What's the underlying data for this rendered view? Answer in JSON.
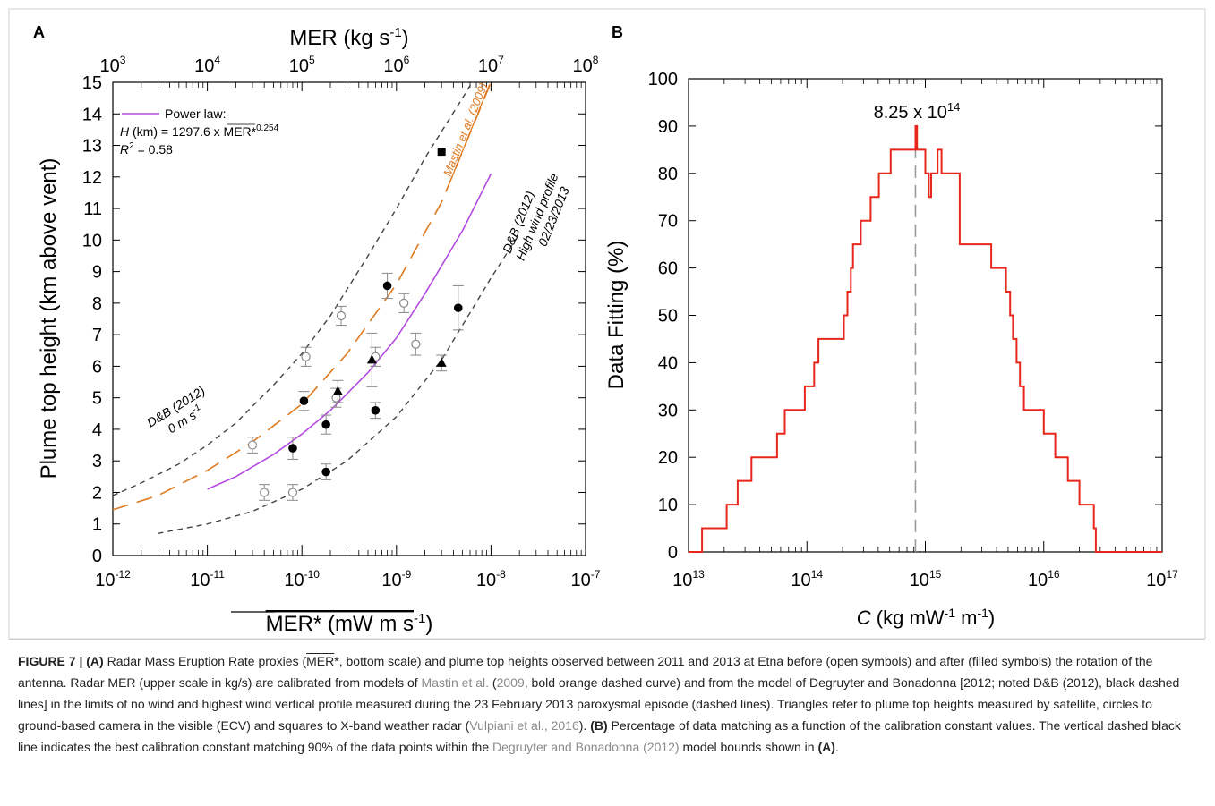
{
  "chart_data": [
    {
      "panel": "A",
      "type": "scatter",
      "top_axis": {
        "label": "MER (kg s",
        "label_sup": "-1",
        "label_close": ")",
        "ticks": [
          "10^3",
          "10^4",
          "10^5",
          "10^6",
          "10^7",
          "10^8"
        ],
        "log": true,
        "range": [
          1000,
          100000000
        ]
      },
      "xaxis": {
        "label": "MER* (mW m s",
        "label_sup": "-1",
        "label_close": ")",
        "log": true,
        "range": [
          1e-12,
          1e-07
        ],
        "ticks": [
          "10^-12",
          "10^-11",
          "10^-10",
          "10^-9",
          "10^-8",
          "10^-7"
        ]
      },
      "yaxis": {
        "label": "Plume top height (km above vent)",
        "range": [
          0,
          15
        ],
        "ticks": [
          0,
          1,
          2,
          3,
          4,
          5,
          6,
          7,
          8,
          9,
          10,
          11,
          12,
          13,
          14,
          15
        ]
      },
      "legend": {
        "name": "Power law:",
        "eq_var": "H",
        "eq_mid": " (km) = 1297.6 x MER*",
        "eq_exp": "0.254",
        "r2_label": "R",
        "r2_value": " = 0.58",
        "color": "#b44be1"
      },
      "curves": [
        {
          "name": "D&B (2012) 0 m s-1",
          "label_line1": "D&B (2012)",
          "label_line2": "0 m s",
          "label_sup": "-1",
          "style": "dashed-black",
          "points": [
            [
              1e-12,
              1.9
            ],
            [
              2e-12,
              2.3
            ],
            [
              5e-12,
              2.9
            ],
            [
              1e-11,
              3.5
            ],
            [
              2e-11,
              4.2
            ],
            [
              5e-11,
              5.4
            ],
            [
              1e-10,
              6.4
            ],
            [
              2e-10,
              7.6
            ],
            [
              5e-10,
              9.5
            ],
            [
              1e-09,
              11.0
            ],
            [
              2e-09,
              12.6
            ],
            [
              5e-09,
              14.5
            ],
            [
              6.3e-09,
              15.0
            ]
          ]
        },
        {
          "name": "Mastin et al. (2009)",
          "label": "Mastin et al. (2009)",
          "style": "dashed-orange",
          "points": [
            [
              1e-12,
              1.45
            ],
            [
              3e-12,
              1.9
            ],
            [
              1e-11,
              2.7
            ],
            [
              3e-11,
              3.6
            ],
            [
              1e-10,
              4.8
            ],
            [
              3e-10,
              6.4
            ],
            [
              1e-09,
              8.6
            ],
            [
              3e-09,
              11.2
            ],
            [
              1e-08,
              15.0
            ]
          ]
        },
        {
          "name": "Power law",
          "style": "solid-purple",
          "points": [
            [
              1e-11,
              2.1
            ],
            [
              2e-11,
              2.5
            ],
            [
              5e-11,
              3.2
            ],
            [
              1e-10,
              3.85
            ],
            [
              2e-10,
              4.6
            ],
            [
              5e-10,
              5.8
            ],
            [
              1e-09,
              6.9
            ],
            [
              2e-09,
              8.3
            ],
            [
              5e-09,
              10.3
            ],
            [
              1e-08,
              12.1
            ]
          ]
        },
        {
          "name": "D&B (2012) High wind profile 02/23/2013",
          "label_line1": "D&B (2012)",
          "label_line2": "High wind profile",
          "label_line3": "02/23/2013",
          "style": "dashed-black",
          "points": [
            [
              3e-12,
              0.7
            ],
            [
              1e-11,
              1.0
            ],
            [
              3e-11,
              1.4
            ],
            [
              1e-10,
              2.1
            ],
            [
              3e-10,
              3.0
            ],
            [
              1e-09,
              4.4
            ],
            [
              3e-09,
              6.2
            ],
            [
              1e-08,
              8.8
            ],
            [
              2e-08,
              10.2
            ]
          ]
        }
      ],
      "series": [
        {
          "name": "open circles",
          "marker": "open-circle",
          "points": [
            [
              3e-11,
              3.5,
              0.25
            ],
            [
              4e-11,
              2.0,
              0.25
            ],
            [
              8e-11,
              2.0,
              0.25
            ],
            [
              1.1e-10,
              6.3,
              0.3
            ],
            [
              2.3e-10,
              5.0,
              0.3
            ],
            [
              2.6e-10,
              7.6,
              0.3
            ],
            [
              6e-10,
              6.3,
              0.3
            ],
            [
              1.2e-09,
              8.0,
              0.3
            ],
            [
              1.6e-09,
              6.7,
              0.35
            ]
          ]
        },
        {
          "name": "filled circles",
          "marker": "filled-circle",
          "points": [
            [
              8e-11,
              3.4,
              0.35
            ],
            [
              1.05e-10,
              4.9,
              0.3
            ],
            [
              1.8e-10,
              2.65,
              0.25
            ],
            [
              1.8e-10,
              4.15,
              0.3
            ],
            [
              6e-10,
              4.6,
              0.25
            ],
            [
              8e-10,
              8.55,
              0.4
            ],
            [
              4.5e-09,
              7.85,
              0.7
            ]
          ]
        },
        {
          "name": "filled triangles",
          "marker": "filled-triangle",
          "points": [
            [
              2.4e-10,
              5.2,
              0.35
            ],
            [
              5.5e-10,
              6.2,
              0.85
            ],
            [
              3e-09,
              6.1,
              0.25
            ]
          ]
        },
        {
          "name": "filled square",
          "marker": "filled-square",
          "points": [
            [
              3e-09,
              12.8,
              0
            ]
          ]
        }
      ]
    },
    {
      "panel": "B",
      "type": "line",
      "xaxis": {
        "label_var": "C",
        "label": " (kg mW",
        "label_sup1": "-1",
        "label_mid": " m",
        "label_sup2": "-1",
        "label_close": ")",
        "log": true,
        "range": [
          10000000000000.0,
          1e+17
        ],
        "ticks": [
          "10^13",
          "10^14",
          "10^15",
          "10^16",
          "10^17"
        ]
      },
      "yaxis": {
        "label": "Data Fitting (%)",
        "range": [
          0,
          100
        ],
        "ticks": [
          0,
          10,
          20,
          30,
          40,
          50,
          60,
          70,
          80,
          90,
          100
        ]
      },
      "annotation": {
        "base": "8.25 x 10",
        "exp": "14",
        "x": 825000000000000.0
      },
      "color": "#e8261c",
      "steps": [
        [
          10000000000000.0,
          0
        ],
        [
          13000000000000.0,
          5
        ],
        [
          21000000000000.0,
          10
        ],
        [
          26000000000000.0,
          15
        ],
        [
          34000000000000.0,
          20
        ],
        [
          56000000000000.0,
          25
        ],
        [
          65000000000000.0,
          30
        ],
        [
          96000000000000.0,
          35
        ],
        [
          115000000000000.0,
          40
        ],
        [
          125000000000000.0,
          45
        ],
        [
          205000000000000.0,
          50
        ],
        [
          220000000000000.0,
          55
        ],
        [
          235000000000000.0,
          60
        ],
        [
          245000000000000.0,
          65
        ],
        [
          285000000000000.0,
          70
        ],
        [
          345000000000000.0,
          75
        ],
        [
          405000000000000.0,
          80
        ],
        [
          510000000000000.0,
          85
        ],
        [
          825000000000000.0,
          90
        ],
        [
          850000000000000.0,
          85
        ],
        [
          1000000000000000.0,
          80
        ],
        [
          1070000000000000.0,
          75
        ],
        [
          1120000000000000.0,
          80
        ],
        [
          1270000000000000.0,
          85
        ],
        [
          1370000000000000.0,
          80
        ],
        [
          1800000000000000.0,
          80
        ],
        [
          1950000000000000.0,
          65
        ],
        [
          3600000000000000.0,
          60
        ],
        [
          4800000000000000.0,
          55
        ],
        [
          5200000000000000.0,
          50
        ],
        [
          5500000000000000.0,
          45
        ],
        [
          5900000000000000.0,
          40
        ],
        [
          6300000000000000.0,
          35
        ],
        [
          6800000000000000.0,
          30
        ],
        [
          1e+16,
          25
        ],
        [
          1.25e+16,
          20
        ],
        [
          1.6e+16,
          15
        ],
        [
          2e+16,
          10
        ],
        [
          2.65e+16,
          5
        ],
        [
          2.75e+16,
          0
        ],
        [
          1e+17,
          0
        ]
      ]
    }
  ],
  "panel_labels": {
    "a": "A",
    "b": "B"
  },
  "caption": {
    "fig": "FIGURE 7 | ",
    "a_tag": "(A)",
    "p1": " Radar Mass Eruption Rate proxies (",
    "mer_overbar": "MER",
    "p2": "*, bottom scale) and plume top heights observed between 2011 and 2013 at Etna before (open symbols) and after (filled symbols) the rotation of the antenna. Radar MER (upper scale in kg/s) are calibrated from models of ",
    "link1": "Mastin et al.",
    "p3": " (",
    "link1_year": "2009",
    "p4": ", bold orange dashed curve) and from the model of Degruyter and Bonadonna [2012; noted D&B (2012), black dashed lines] in the limits of no wind and highest wind vertical profile measured during the 23 February 2013 paroxysmal episode (dashed lines). Triangles refer to plume top heights measured by satellite, circles to ground-based camera in the visible (ECV) and squares to X-band weather radar (",
    "link2": "Vulpiani et al., 2016",
    "p5": "). ",
    "b_tag": "(B)",
    "p6": " Percentage of data matching as a function of the calibration constant values. The vertical dashed black line indicates the best calibration constant matching 90% of the data points within the ",
    "link3": "Degruyter and Bonadonna (2012)",
    "p7": " model bounds shown in ",
    "a_tag2": "(A)",
    "p8": "."
  }
}
